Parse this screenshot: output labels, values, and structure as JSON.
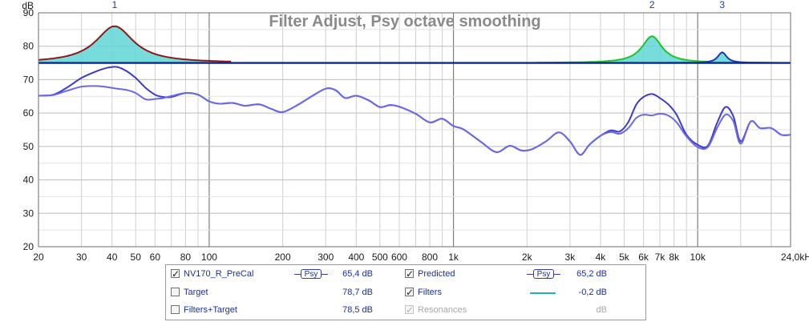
{
  "chart_data": {
    "type": "line",
    "title": "Filter Adjust, Psy octave smoothing",
    "ylabel": "dB",
    "xscale": "log",
    "xlim": [
      20,
      24000
    ],
    "ylim": [
      20,
      90
    ],
    "grid": true,
    "y_ticks": [
      {
        "value": 20,
        "label": "20"
      },
      {
        "value": 30,
        "label": "30"
      },
      {
        "value": 40,
        "label": "40"
      },
      {
        "value": 50,
        "label": "50"
      },
      {
        "value": 60,
        "label": "60"
      },
      {
        "value": 70,
        "label": "70"
      },
      {
        "value": 80,
        "label": "80"
      },
      {
        "value": 90,
        "label": "90"
      }
    ],
    "x_ticks": [
      {
        "value": 20,
        "label": "20"
      },
      {
        "value": 30,
        "label": "30"
      },
      {
        "value": 40,
        "label": "40"
      },
      {
        "value": 50,
        "label": "50"
      },
      {
        "value": 60,
        "label": "60"
      },
      {
        "value": 80,
        "label": "80"
      },
      {
        "value": 100,
        "label": "100"
      },
      {
        "value": 200,
        "label": "200"
      },
      {
        "value": 300,
        "label": "300"
      },
      {
        "value": 400,
        "label": "400"
      },
      {
        "value": 500,
        "label": "500"
      },
      {
        "value": 600,
        "label": "600"
      },
      {
        "value": 800,
        "label": "800"
      },
      {
        "value": 1000,
        "label": "1k"
      },
      {
        "value": 2000,
        "label": "2k"
      },
      {
        "value": 3000,
        "label": "3k"
      },
      {
        "value": 4000,
        "label": "4k"
      },
      {
        "value": 5000,
        "label": "5k"
      },
      {
        "value": 6000,
        "label": "6k"
      },
      {
        "value": 7000,
        "label": "7k"
      },
      {
        "value": 8000,
        "label": "8k"
      },
      {
        "value": 10000,
        "label": "10k"
      },
      {
        "value": 24000,
        "label": "24,0kHz"
      }
    ],
    "filter_markers": [
      {
        "label": "1",
        "freq": 41
      },
      {
        "label": "2",
        "freq": 6500
      },
      {
        "label": "3",
        "freq": 12600
      }
    ],
    "baseline_db": 75,
    "series": [
      {
        "name": "NV170_R_PreCal",
        "color": "#3c3cc8",
        "x": [
          20,
          23,
          26,
          30,
          34,
          38,
          42,
          46,
          50,
          55,
          60,
          65,
          70,
          80,
          90,
          100,
          110,
          125,
          140,
          160,
          180,
          200,
          230,
          260,
          300,
          330,
          360,
          400,
          450,
          500,
          550,
          600,
          700,
          800,
          900,
          1000,
          1100,
          1300,
          1500,
          1700,
          1900,
          2100,
          2400,
          2700,
          3000,
          3300,
          3600,
          4000,
          4400,
          4800,
          5200,
          5600,
          6000,
          6500,
          7000,
          7600,
          8200,
          9000,
          10000,
          11000,
          12000,
          13000,
          14000,
          15000,
          16500,
          18000,
          20000,
          22000,
          24000
        ],
        "y": [
          65.2,
          65.5,
          67.5,
          70.5,
          72.3,
          73.5,
          73.8,
          72.5,
          70.5,
          67.5,
          65.5,
          64.8,
          64.8,
          66,
          65.5,
          63.5,
          62.8,
          63,
          62.2,
          62.6,
          61.2,
          60.3,
          62.4,
          64.8,
          67.3,
          66.8,
          64.5,
          65.2,
          63.8,
          61.8,
          62.4,
          61.9,
          59.8,
          57.2,
          58.3,
          56.1,
          55.1,
          51.3,
          48.3,
          50.2,
          48.8,
          49.2,
          51.6,
          54.2,
          51.5,
          47.5,
          50.5,
          53.2,
          54.8,
          54.5,
          57.3,
          62.5,
          64.8,
          65.7,
          64.5,
          62.5,
          59.5,
          53.5,
          50.5,
          50.2,
          57,
          61.8,
          59,
          51.5,
          57.5,
          55.5,
          55.5,
          53.5,
          53.5
        ]
      },
      {
        "name": "Predicted",
        "color": "#6a6ae6",
        "x": [
          20,
          23,
          26,
          30,
          34,
          38,
          42,
          46,
          50,
          55,
          60,
          65,
          70,
          80,
          90,
          100,
          110,
          125,
          140,
          160,
          180,
          200,
          230,
          260,
          300,
          330,
          360,
          400,
          450,
          500,
          550,
          600,
          700,
          800,
          900,
          1000,
          1100,
          1300,
          1500,
          1700,
          1900,
          2100,
          2400,
          2700,
          3000,
          3300,
          3600,
          4000,
          4400,
          4800,
          5200,
          5600,
          6000,
          6500,
          7000,
          7600,
          8200,
          9000,
          10000,
          11000,
          12000,
          13000,
          14000,
          15000,
          16500,
          18000,
          20000,
          22000,
          24000
        ],
        "y": [
          65.2,
          65.4,
          66.6,
          67.9,
          68.1,
          67.8,
          67.3,
          66.9,
          66,
          64.1,
          64.2,
          64.5,
          65.1,
          66,
          65.5,
          63.5,
          62.8,
          63,
          62.2,
          62.6,
          61.2,
          60.3,
          62.4,
          64.8,
          67.3,
          66.8,
          64.5,
          65.2,
          63.8,
          61.8,
          62.4,
          61.9,
          59.8,
          57.2,
          58.3,
          56.1,
          55.1,
          51.3,
          48.3,
          50.2,
          48.8,
          49.2,
          51.6,
          54.2,
          51.5,
          47.5,
          50.5,
          53.2,
          54.3,
          53.8,
          55.5,
          58.5,
          59.5,
          59.3,
          59.8,
          59.2,
          57.2,
          53,
          49.8,
          49.8,
          55.5,
          59.5,
          57.5,
          50.8,
          57.5,
          55.5,
          55.5,
          53.5,
          53.5
        ]
      },
      {
        "name": "Filters",
        "color": "#0a2a8c",
        "fills": [
          "#8b1a1a",
          "#22c22a",
          "#1a3bb0"
        ],
        "filters": [
          {
            "label": "1",
            "freq": 41,
            "gain_db": 11,
            "q": 3.2
          },
          {
            "label": "2",
            "freq": 6500,
            "gain_db": 8,
            "q": 6
          },
          {
            "label": "3",
            "freq": 12600,
            "gain_db": 3.2,
            "q": 14
          }
        ]
      }
    ]
  },
  "legend": {
    "rows": [
      [
        {
          "name": "NV170_R_PreCal",
          "checked": true,
          "disabled": false,
          "value": "65,4 dB",
          "smoothing": "Psy"
        },
        {
          "name": "Predicted",
          "checked": true,
          "disabled": false,
          "value": "65,2 dB",
          "smoothing": "Psy"
        }
      ],
      [
        {
          "name": "Target",
          "checked": false,
          "disabled": false,
          "value": "78,7 dB"
        },
        {
          "name": "Filters",
          "checked": true,
          "disabled": false,
          "value": "-0,2 dB",
          "swatch_color": "#1fb5b5"
        }
      ],
      [
        {
          "name": "Filters+Target",
          "checked": false,
          "disabled": false,
          "value": "78,5 dB"
        },
        {
          "name": "Resonances",
          "checked": true,
          "disabled": true,
          "value": "dB"
        }
      ]
    ]
  }
}
